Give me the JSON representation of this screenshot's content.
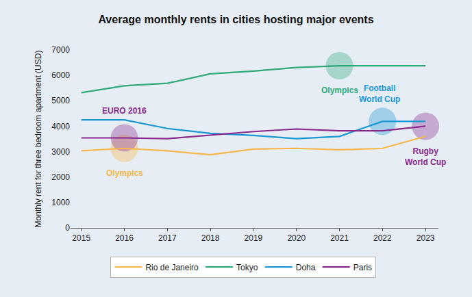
{
  "chart_data": {
    "type": "line",
    "title": "Average monthly rents in cities hosting major events",
    "y_label": "Monthly rent for three bedroom apartment (USD)",
    "x": [
      2015,
      2016,
      2017,
      2018,
      2019,
      2020,
      2021,
      2022,
      2023
    ],
    "series": [
      {
        "name": "Rio de Janeiro",
        "color": "#f7b84b",
        "values": [
          3030,
          3130,
          3030,
          2880,
          3100,
          3130,
          3070,
          3130,
          3600
        ]
      },
      {
        "name": "Tokyo",
        "color": "#2faa78",
        "values": [
          5320,
          5590,
          5690,
          6060,
          6170,
          6310,
          6380,
          6380,
          6380
        ]
      },
      {
        "name": "Doha",
        "color": "#1a98d5",
        "values": [
          4250,
          4250,
          3910,
          3720,
          3640,
          3510,
          3600,
          4190,
          4190
        ]
      },
      {
        "name": "Paris",
        "color": "#8a2a8c",
        "values": [
          3540,
          3540,
          3510,
          3650,
          3790,
          3890,
          3820,
          3820,
          4000
        ]
      }
    ],
    "annotations": [
      {
        "text": "Olympics",
        "series": "Rio de Janeiro",
        "x": 2016
      },
      {
        "text": "EURO 2016",
        "series": "Paris",
        "x": 2016
      },
      {
        "text": "Olympics",
        "series": "Tokyo",
        "x": 2021
      },
      {
        "text": "Football\nWorld Cup",
        "series": "Doha",
        "x": 2022
      },
      {
        "text": "Rugby\nWorld Cup",
        "series": "Paris",
        "x": 2023
      }
    ],
    "xlim": [
      2014.75,
      2023.3
    ],
    "xticks": [
      2015,
      2016,
      2017,
      2018,
      2019,
      2020,
      2021,
      2022,
      2023
    ],
    "ylim": [
      0,
      7000
    ],
    "yticks": [
      0,
      1000,
      2000,
      3000,
      4000,
      5000,
      6000,
      7000
    ],
    "grid": false,
    "legend": "bottom"
  }
}
